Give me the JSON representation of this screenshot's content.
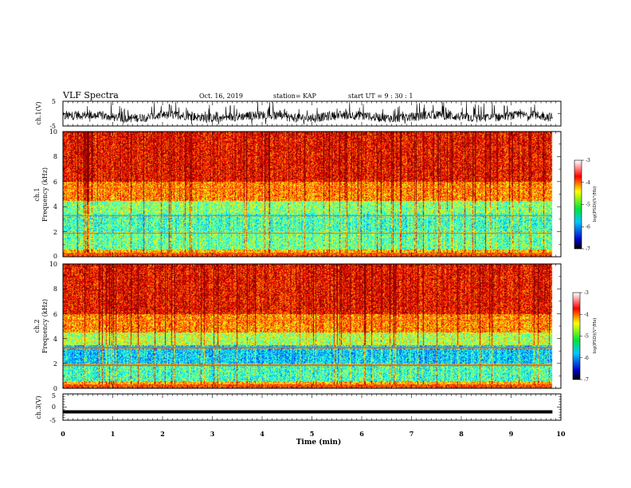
{
  "header": {
    "title": "VLF Spectra",
    "date": "Oct. 16, 2019",
    "station": "station= KAP",
    "start": "start  UT =   9 : 30 : 1"
  },
  "chart_data": [
    {
      "type": "line",
      "name": "ch1-waveform",
      "ylabel": "ch.1(V)",
      "ylim": [
        -5,
        5
      ],
      "y_ticks": [
        "5",
        "-5"
      ],
      "x_range_min": [
        0,
        9.83
      ],
      "baseline_v": -1.2,
      "amplitude_v": 4.0
    },
    {
      "type": "heatmap",
      "name": "ch1-spectrogram",
      "ylabel_top": "ch.1",
      "ylabel_bottom": "Frequency (kHz)",
      "ylim": [
        0,
        10
      ],
      "y_ticks": [
        "0",
        "2",
        "4",
        "6",
        "8",
        "10"
      ],
      "x_range_min": [
        0,
        9.83
      ],
      "colorbar": {
        "label": "log(PSD)(V²/Hz)",
        "ticks": [
          "-3",
          "-4",
          "-5",
          "-6",
          "-7"
        ],
        "range": [
          -7,
          -3
        ]
      }
    },
    {
      "type": "heatmap",
      "name": "ch2-spectrogram",
      "ylabel_top": "ch.2",
      "ylabel_bottom": "Frequency (kHz)",
      "ylim": [
        0,
        10
      ],
      "y_ticks": [
        "0",
        "2",
        "4",
        "6",
        "8",
        "10"
      ],
      "x_range_min": [
        0,
        9.83
      ],
      "colorbar": {
        "label": "log(PSD)(V²/Hz)",
        "ticks": [
          "-3",
          "-4",
          "-5",
          "-6",
          "-7"
        ],
        "range": [
          -7,
          -3
        ]
      }
    },
    {
      "type": "line",
      "name": "ch3-signal",
      "ylabel": "ch.3(V)",
      "ylim": [
        -5,
        5
      ],
      "y_ticks": [
        "5",
        "0",
        "-5"
      ],
      "x_range_min": [
        0,
        9.83
      ],
      "level_v": -1.8
    }
  ],
  "x_axis": {
    "label": "Time (min)",
    "ticks": [
      "0",
      "1",
      "2",
      "3",
      "4",
      "5",
      "6",
      "7",
      "8",
      "9",
      "10"
    ]
  }
}
